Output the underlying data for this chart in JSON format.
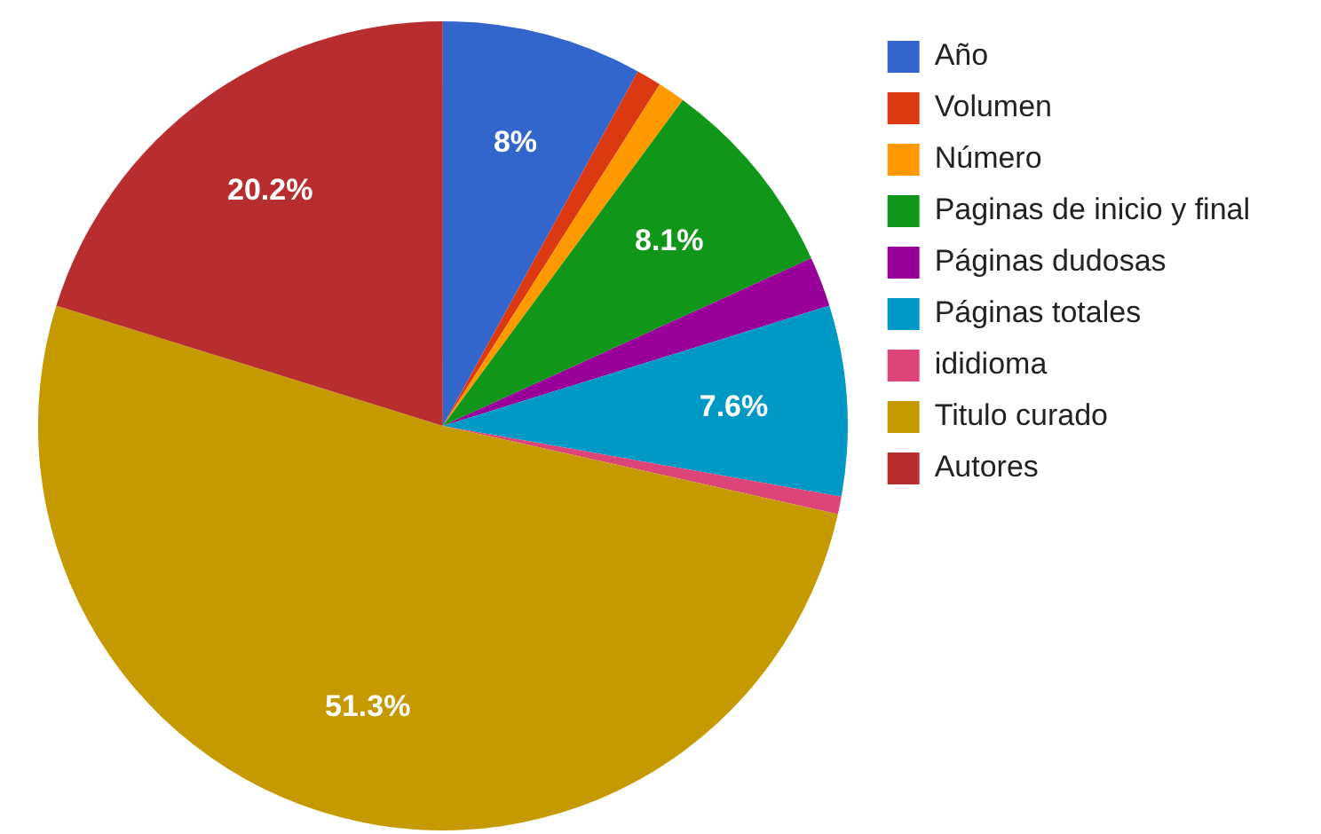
{
  "chart_data": {
    "type": "pie",
    "categories": [
      "Año",
      "Volumen",
      "Número",
      "Paginas de inicio y final",
      "Páginas dudosas",
      "Páginas totales",
      "ididioma",
      "Titulo curado",
      "Autores"
    ],
    "values": [
      8,
      1,
      1.1,
      8.1,
      2,
      7.6,
      0.7,
      51.3,
      20.2
    ],
    "colors": [
      "#3366cc",
      "#dc3912",
      "#ff9900",
      "#109618",
      "#990099",
      "#0099c6",
      "#dd4477",
      "#c49a00",
      "#b82e2e"
    ],
    "value_labels": [
      "8%",
      null,
      null,
      "8.1%",
      null,
      "7.6%",
      null,
      "51.3%",
      "20.2%"
    ],
    "legend": "right"
  }
}
